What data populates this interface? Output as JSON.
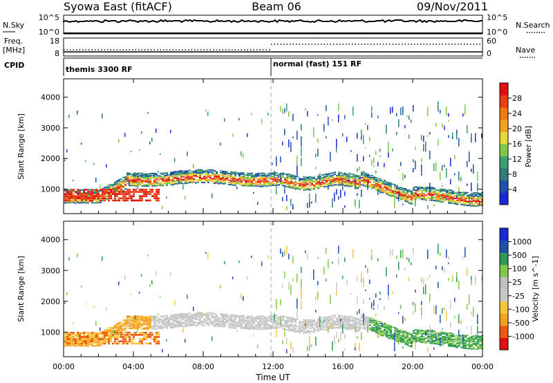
{
  "header": {
    "title": "Syowa East (fitACF)",
    "beam": "Beam 06",
    "date": "09/Nov/2011"
  },
  "strip_labels": {
    "nsky": "N.Sky",
    "nsky_top": "10^5",
    "nsky_bottom": "10^0",
    "nsearch": "N.Search",
    "nsearch_top": "10^5",
    "nsearch_bottom": "10^0",
    "freq_1": "Freq.",
    "freq_2": "[MHz]",
    "freq_top": "18",
    "freq_bottom": "8",
    "nave": "Nave",
    "nave_top": "60",
    "nave_bottom": "0",
    "cpid": "CPID"
  },
  "cpid_segments": [
    {
      "start": "00:00",
      "label": "themis 3300 RF"
    },
    {
      "start": "12:00",
      "label": "normal (fast) 151 RF"
    }
  ],
  "colors": {
    "power": [
      "#1a2bd6",
      "#1d4fae",
      "#2f7a7a",
      "#3aa070",
      "#7ec84a",
      "#e8d83a",
      "#f5a020",
      "#f07a10",
      "#e84010",
      "#e01010"
    ],
    "velocity": [
      "#e01010",
      "#f05a10",
      "#f5a020",
      "#f7c43a",
      "#c8c8c8",
      "#c0c0c0",
      "#7ec84a",
      "#2f9a55",
      "#1d4fae",
      "#1a2bd6"
    ]
  },
  "chart_data": [
    {
      "type": "heatmap",
      "name": "power",
      "xlabel": "Time UT",
      "ylabel": "Slant Range [km]",
      "x_ticks": [
        "00:00",
        "04:00",
        "08:00",
        "12:00",
        "16:00",
        "20:00",
        "00:00"
      ],
      "x_range_hours": [
        0,
        24
      ],
      "y_ticks": [
        1000,
        2000,
        3000,
        4000
      ],
      "ylim": [
        200,
        4600
      ],
      "colorbar": {
        "label": "Power [dB]",
        "ticks": [
          4,
          8,
          12,
          16,
          20,
          24,
          28
        ],
        "range": [
          0,
          32
        ]
      }
    },
    {
      "type": "heatmap",
      "name": "velocity",
      "xlabel": "Time UT",
      "ylabel": "Slant Range [km]",
      "x_ticks": [
        "00:00",
        "04:00",
        "08:00",
        "12:00",
        "16:00",
        "20:00",
        "00:00"
      ],
      "x_range_hours": [
        0,
        24
      ],
      "y_ticks": [
        1000,
        2000,
        3000,
        4000
      ],
      "ylim": [
        200,
        4600
      ],
      "colorbar": {
        "label": "Velocity [m s^-1]",
        "ticks": [
          1000,
          500,
          100,
          25,
          -25,
          -100,
          -500,
          -1000
        ]
      }
    }
  ]
}
